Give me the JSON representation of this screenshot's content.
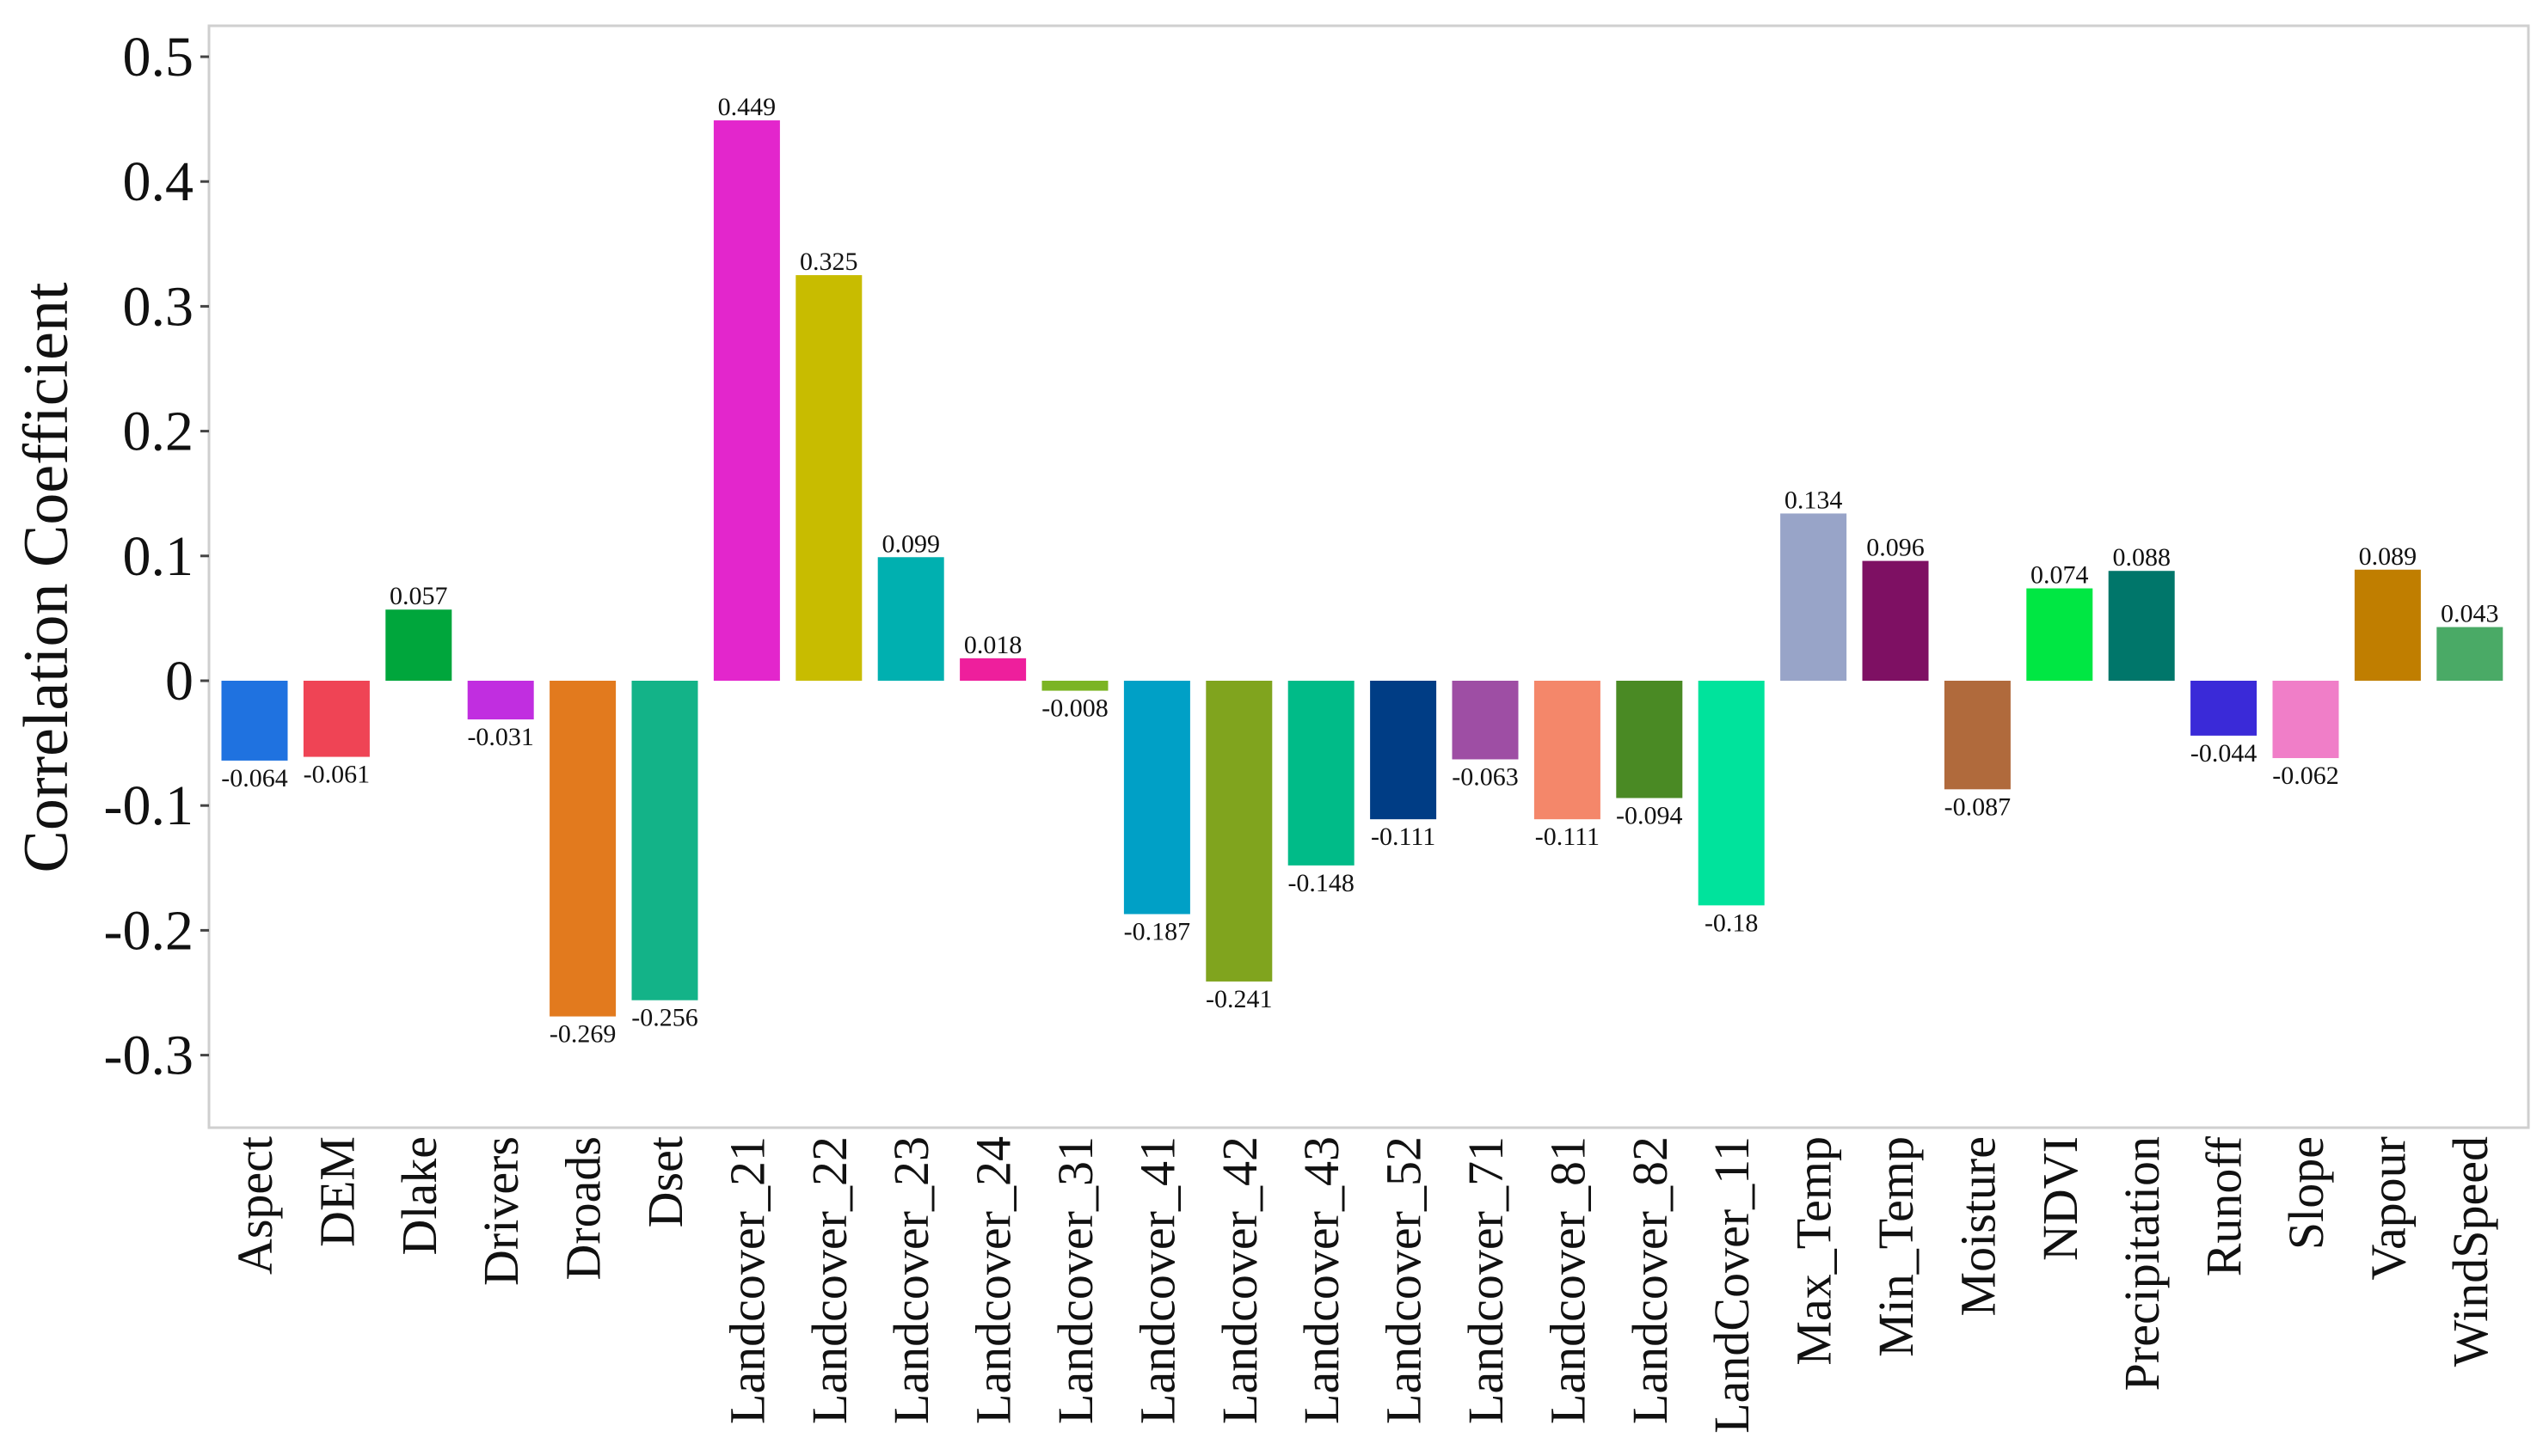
{
  "chart_data": {
    "type": "bar",
    "title": "",
    "xlabel": "",
    "ylabel": "Correlation Coefficient",
    "ylim": [
      -0.36,
      0.53
    ],
    "yticks": [
      0.5,
      0.4,
      0.3,
      0.2,
      0.1,
      0,
      -0.1,
      -0.2,
      -0.3
    ],
    "ytick_labels": [
      "0.5",
      "0.4",
      "0.3",
      "0.2",
      "0.1",
      "0",
      "-0.1",
      "-0.2",
      "-0.3"
    ],
    "grid": false,
    "categories": [
      "Aspect",
      "DEM",
      "Dlake",
      "Drivers",
      "Droads",
      "Dset",
      "Landcover_21",
      "Landcover_22",
      "Landcover_23",
      "Landcover_24",
      "Landcover_31",
      "Landcover_41",
      "Landcover_42",
      "Landcover_43",
      "Landcover_52",
      "Landcover_71",
      "Landcover_81",
      "Landcover_82",
      "LandCover_11",
      "Max_Temp",
      "Min_Temp",
      "Moisture",
      "NDVI",
      "Precipitation",
      "Runoff",
      "Slope",
      "Vapour",
      "WindSpeed"
    ],
    "values": [
      -0.064,
      -0.061,
      0.057,
      -0.031,
      -0.269,
      -0.256,
      0.449,
      0.325,
      0.099,
      0.018,
      -0.008,
      -0.187,
      -0.241,
      -0.148,
      -0.111,
      -0.063,
      -0.111,
      -0.094,
      -0.18,
      0.134,
      0.096,
      -0.087,
      0.074,
      0.088,
      -0.044,
      -0.062,
      0.089,
      0.043
    ],
    "value_labels": [
      "-0.064",
      "-0.061",
      "0.057",
      "-0.031",
      "-0.269",
      "-0.256",
      "0.449",
      "0.325",
      "0.099",
      "0.018",
      "-0.008",
      "-0.187",
      "-0.241",
      "-0.148",
      "-0.111",
      "-0.063",
      "-0.111",
      "-0.094",
      "-0.18",
      "0.134",
      "0.096",
      "-0.087",
      "0.074",
      "0.088",
      "-0.044",
      "-0.062",
      "0.089",
      "0.043"
    ],
    "colors": [
      "#1f72e0",
      "#ef4455",
      "#00a63c",
      "#c12ee0",
      "#e27a1e",
      "#13b388",
      "#e326cc",
      "#c8bc00",
      "#00b0b0",
      "#ee1f9c",
      "#7bb424",
      "#00a0c6",
      "#80a41e",
      "#00bb88",
      "#003d85",
      "#9e4ea4",
      "#f4876a",
      "#4a8a24",
      "#00e39c",
      "#98a4c8",
      "#7e1063",
      "#b06a3c",
      "#00e743",
      "#00766a",
      "#3a2ad8",
      "#f07ec8",
      "#c07e00",
      "#4aaa66"
    ]
  }
}
